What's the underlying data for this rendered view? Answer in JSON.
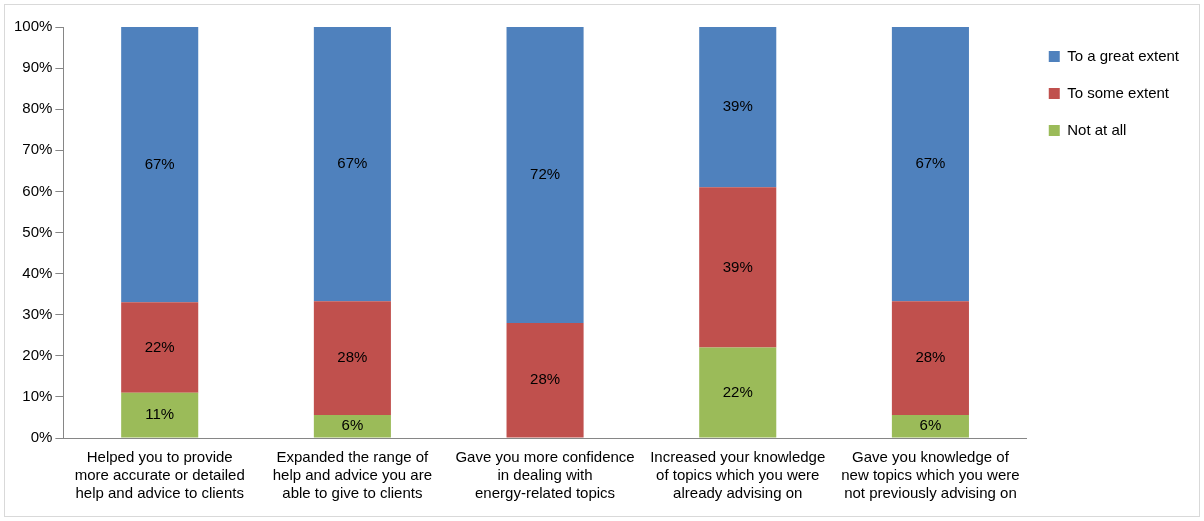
{
  "chart_data": {
    "type": "bar",
    "stacked": true,
    "categories": [
      "Helped you to provide more accurate or detailed help and advice to clients",
      "Expanded the range of help and advice you are able to give to clients",
      "Gave you more confidence in dealing with energy-related topics",
      "Increased your knowledge of topics which you were already advising on",
      "Gave you knowledge of new topics which you were not previously advising on"
    ],
    "series": [
      {
        "name": "Not at all",
        "color": "#9bbb59",
        "values": [
          11,
          5.6,
          0,
          22,
          5.6
        ],
        "value_labels": [
          "11%",
          "6%",
          null,
          "22%",
          "6%"
        ]
      },
      {
        "name": "To some extent",
        "color": "#c0504d",
        "values": [
          22,
          27.7,
          28,
          39,
          27.7
        ],
        "value_labels": [
          "22%",
          "28%",
          "28%",
          "39%",
          "28%"
        ]
      },
      {
        "name": "To a great extent",
        "color": "#4f81bd",
        "values": [
          67,
          66.7,
          72,
          39,
          66.7
        ],
        "value_labels": [
          "67%",
          "67%",
          "72%",
          "39%",
          "67%"
        ]
      }
    ],
    "ylim": [
      0,
      100
    ],
    "yticks": [
      {
        "value": 0,
        "label": "0%"
      },
      {
        "value": 10,
        "label": "10%"
      },
      {
        "value": 20,
        "label": "20%"
      },
      {
        "value": 30,
        "label": "30%"
      },
      {
        "value": 40,
        "label": "40%"
      },
      {
        "value": 50,
        "label": "50%"
      },
      {
        "value": 60,
        "label": "60%"
      },
      {
        "value": 70,
        "label": "70%"
      },
      {
        "value": 80,
        "label": "80%"
      },
      {
        "value": 90,
        "label": "90%"
      },
      {
        "value": 100,
        "label": "100%"
      }
    ],
    "grid": false,
    "legend": "right"
  }
}
